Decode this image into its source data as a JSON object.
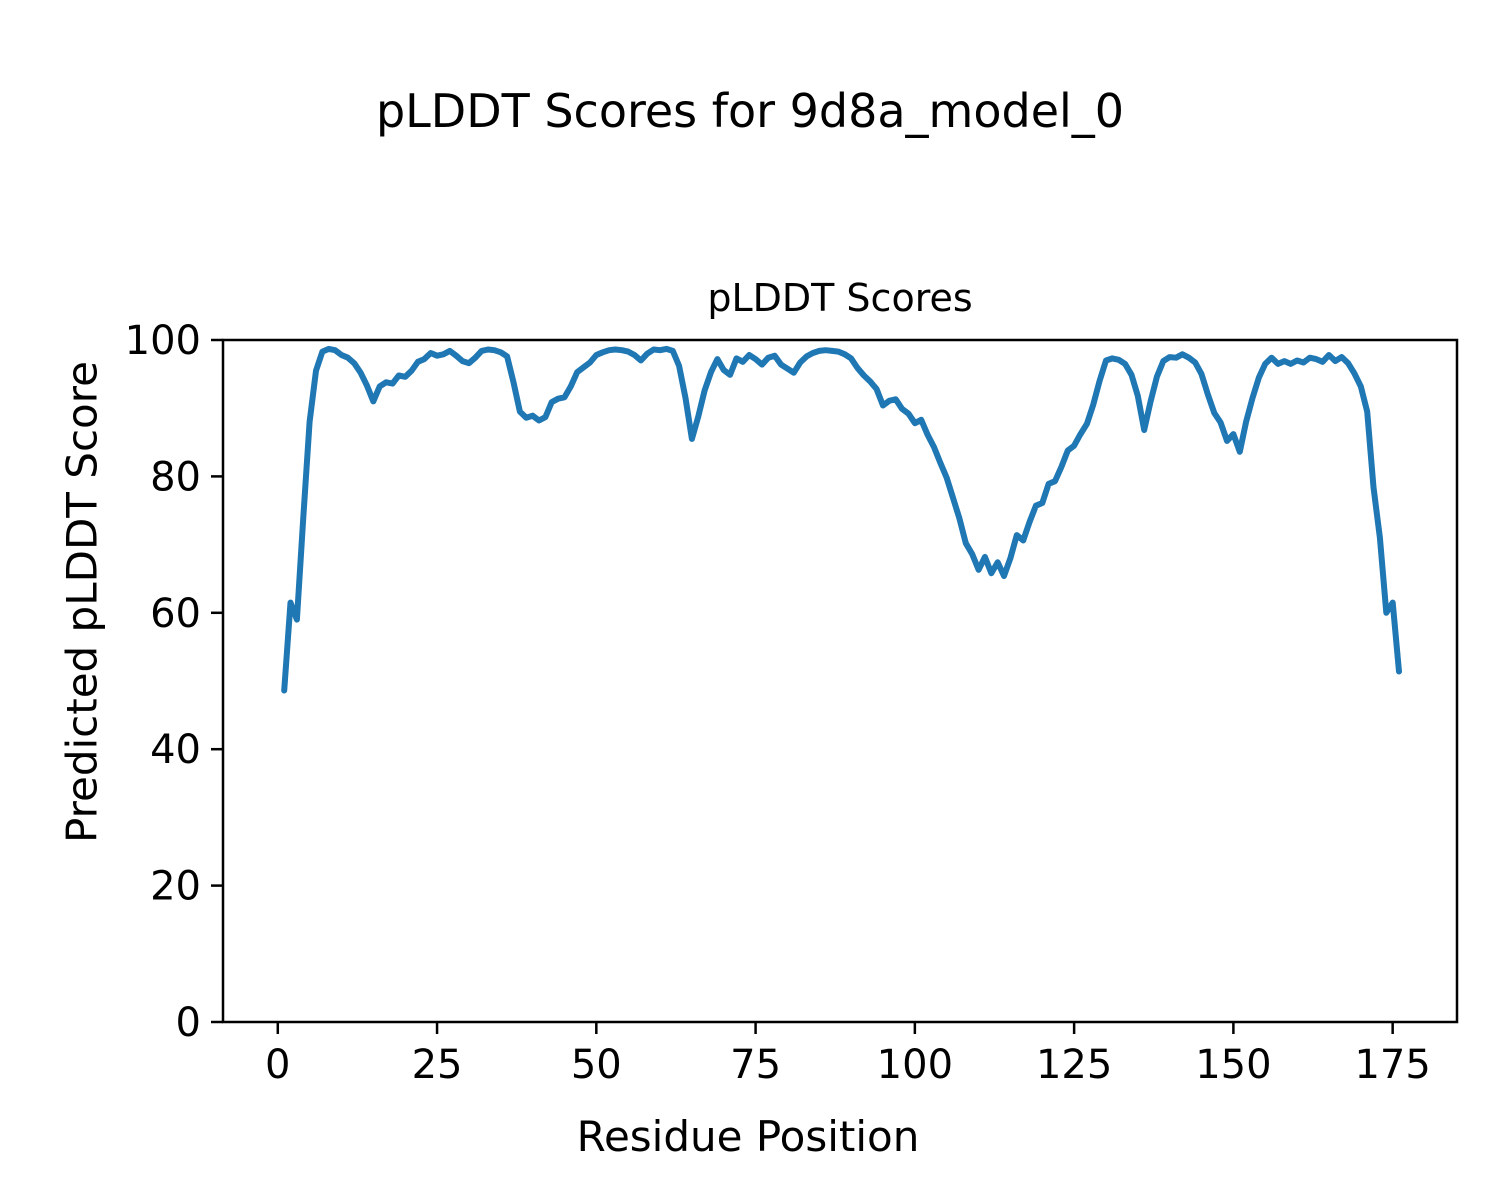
{
  "figure": {
    "suptitle": "pLDDT Scores for 9d8a_model_0",
    "background_color": "#ffffff",
    "text_color": "#000000"
  },
  "chart_data": {
    "type": "line",
    "title": "pLDDT Scores",
    "xlabel": "Residue Position",
    "ylabel": "Predicted pLDDT Score",
    "xlim": [
      -8.6,
      185.1
    ],
    "ylim": [
      0,
      100
    ],
    "x_ticks": [
      0,
      25,
      50,
      75,
      100,
      125,
      150,
      175
    ],
    "y_ticks": [
      0,
      20,
      40,
      60,
      80,
      100
    ],
    "grid": false,
    "legend": "none",
    "line_color": "#1f77b4",
    "axis_color": "#000000",
    "series": [
      {
        "name": "pLDDT",
        "x_start": 1,
        "x_step": 1,
        "values": [
          48.6,
          61.5,
          59.0,
          74.0,
          88.0,
          95.5,
          98.3,
          98.7,
          98.5,
          97.8,
          97.4,
          96.6,
          95.2,
          93.3,
          91.0,
          93.2,
          93.8,
          93.6,
          94.8,
          94.6,
          95.5,
          96.8,
          97.2,
          98.1,
          97.7,
          97.9,
          98.4,
          97.7,
          96.9,
          96.6,
          97.4,
          98.4,
          98.6,
          98.5,
          98.2,
          97.6,
          93.8,
          89.5,
          88.6,
          88.9,
          88.2,
          88.7,
          90.9,
          91.4,
          91.6,
          93.2,
          95.3,
          96.0,
          96.7,
          97.8,
          98.2,
          98.5,
          98.6,
          98.5,
          98.3,
          97.8,
          97.0,
          98.0,
          98.6,
          98.5,
          98.7,
          98.4,
          96.2,
          91.5,
          85.5,
          88.8,
          92.6,
          95.3,
          97.2,
          95.6,
          94.9,
          97.3,
          96.8,
          97.8,
          97.2,
          96.4,
          97.4,
          97.7,
          96.4,
          95.8,
          95.2,
          96.7,
          97.6,
          98.1,
          98.4,
          98.5,
          98.4,
          98.3,
          97.9,
          97.3,
          95.9,
          94.8,
          93.9,
          92.8,
          90.4,
          91.1,
          91.3,
          89.9,
          89.2,
          87.8,
          88.3,
          86.1,
          84.3,
          82.0,
          79.8,
          76.8,
          73.8,
          70.2,
          68.6,
          66.3,
          68.2,
          65.8,
          67.4,
          65.4,
          68.0,
          71.4,
          70.6,
          73.3,
          75.7,
          76.1,
          78.9,
          79.3,
          81.4,
          83.8,
          84.5,
          86.2,
          87.7,
          90.5,
          94.0,
          97.0,
          97.3,
          97.1,
          96.5,
          94.9,
          91.8,
          86.8,
          91.0,
          94.6,
          96.9,
          97.5,
          97.4,
          97.9,
          97.4,
          96.7,
          95.0,
          92.0,
          89.3,
          87.9,
          85.2,
          86.2,
          83.6,
          88.0,
          91.5,
          94.5,
          96.5,
          97.4,
          96.5,
          96.9,
          96.5,
          97.0,
          96.7,
          97.4,
          97.2,
          96.8,
          97.8,
          96.9,
          97.5,
          96.6,
          95.1,
          93.2,
          89.5,
          78.4,
          71.0,
          60.0,
          61.5,
          51.4
        ]
      }
    ]
  }
}
